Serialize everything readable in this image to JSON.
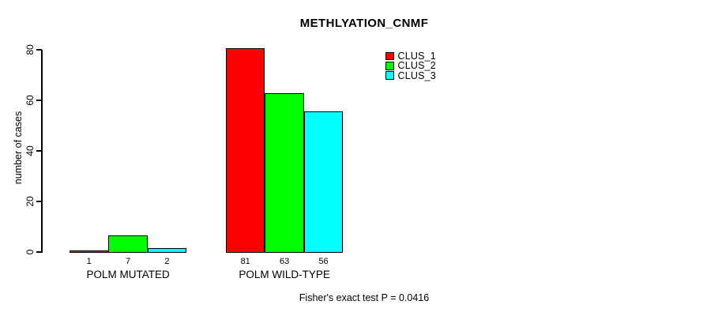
{
  "chart_data": {
    "type": "bar",
    "title": "METHLYATION_CNMF",
    "ylabel": "number of cases",
    "xlabel": "",
    "ylim": [
      0,
      80
    ],
    "yticks": [
      0,
      20,
      40,
      60,
      80
    ],
    "grid": false,
    "legend_position": "top-right",
    "categories": [
      "POLM MUTATED",
      "POLM WILD-TYPE"
    ],
    "series": [
      {
        "name": "CLUS_1",
        "color": "#ff0000",
        "values": [
          1,
          81
        ]
      },
      {
        "name": "CLUS_2",
        "color": "#00ff00",
        "values": [
          7,
          63
        ]
      },
      {
        "name": "CLUS_3",
        "color": "#00ffff",
        "values": [
          2,
          56
        ]
      }
    ],
    "bar_value_labels": [
      [
        "1",
        "7",
        "2"
      ],
      [
        "81",
        "63",
        "56"
      ]
    ],
    "note": "Fisher's exact test P = 0.0416"
  },
  "colors": {
    "background": "#ffffff",
    "axis": "#000000",
    "text": "#000000"
  }
}
